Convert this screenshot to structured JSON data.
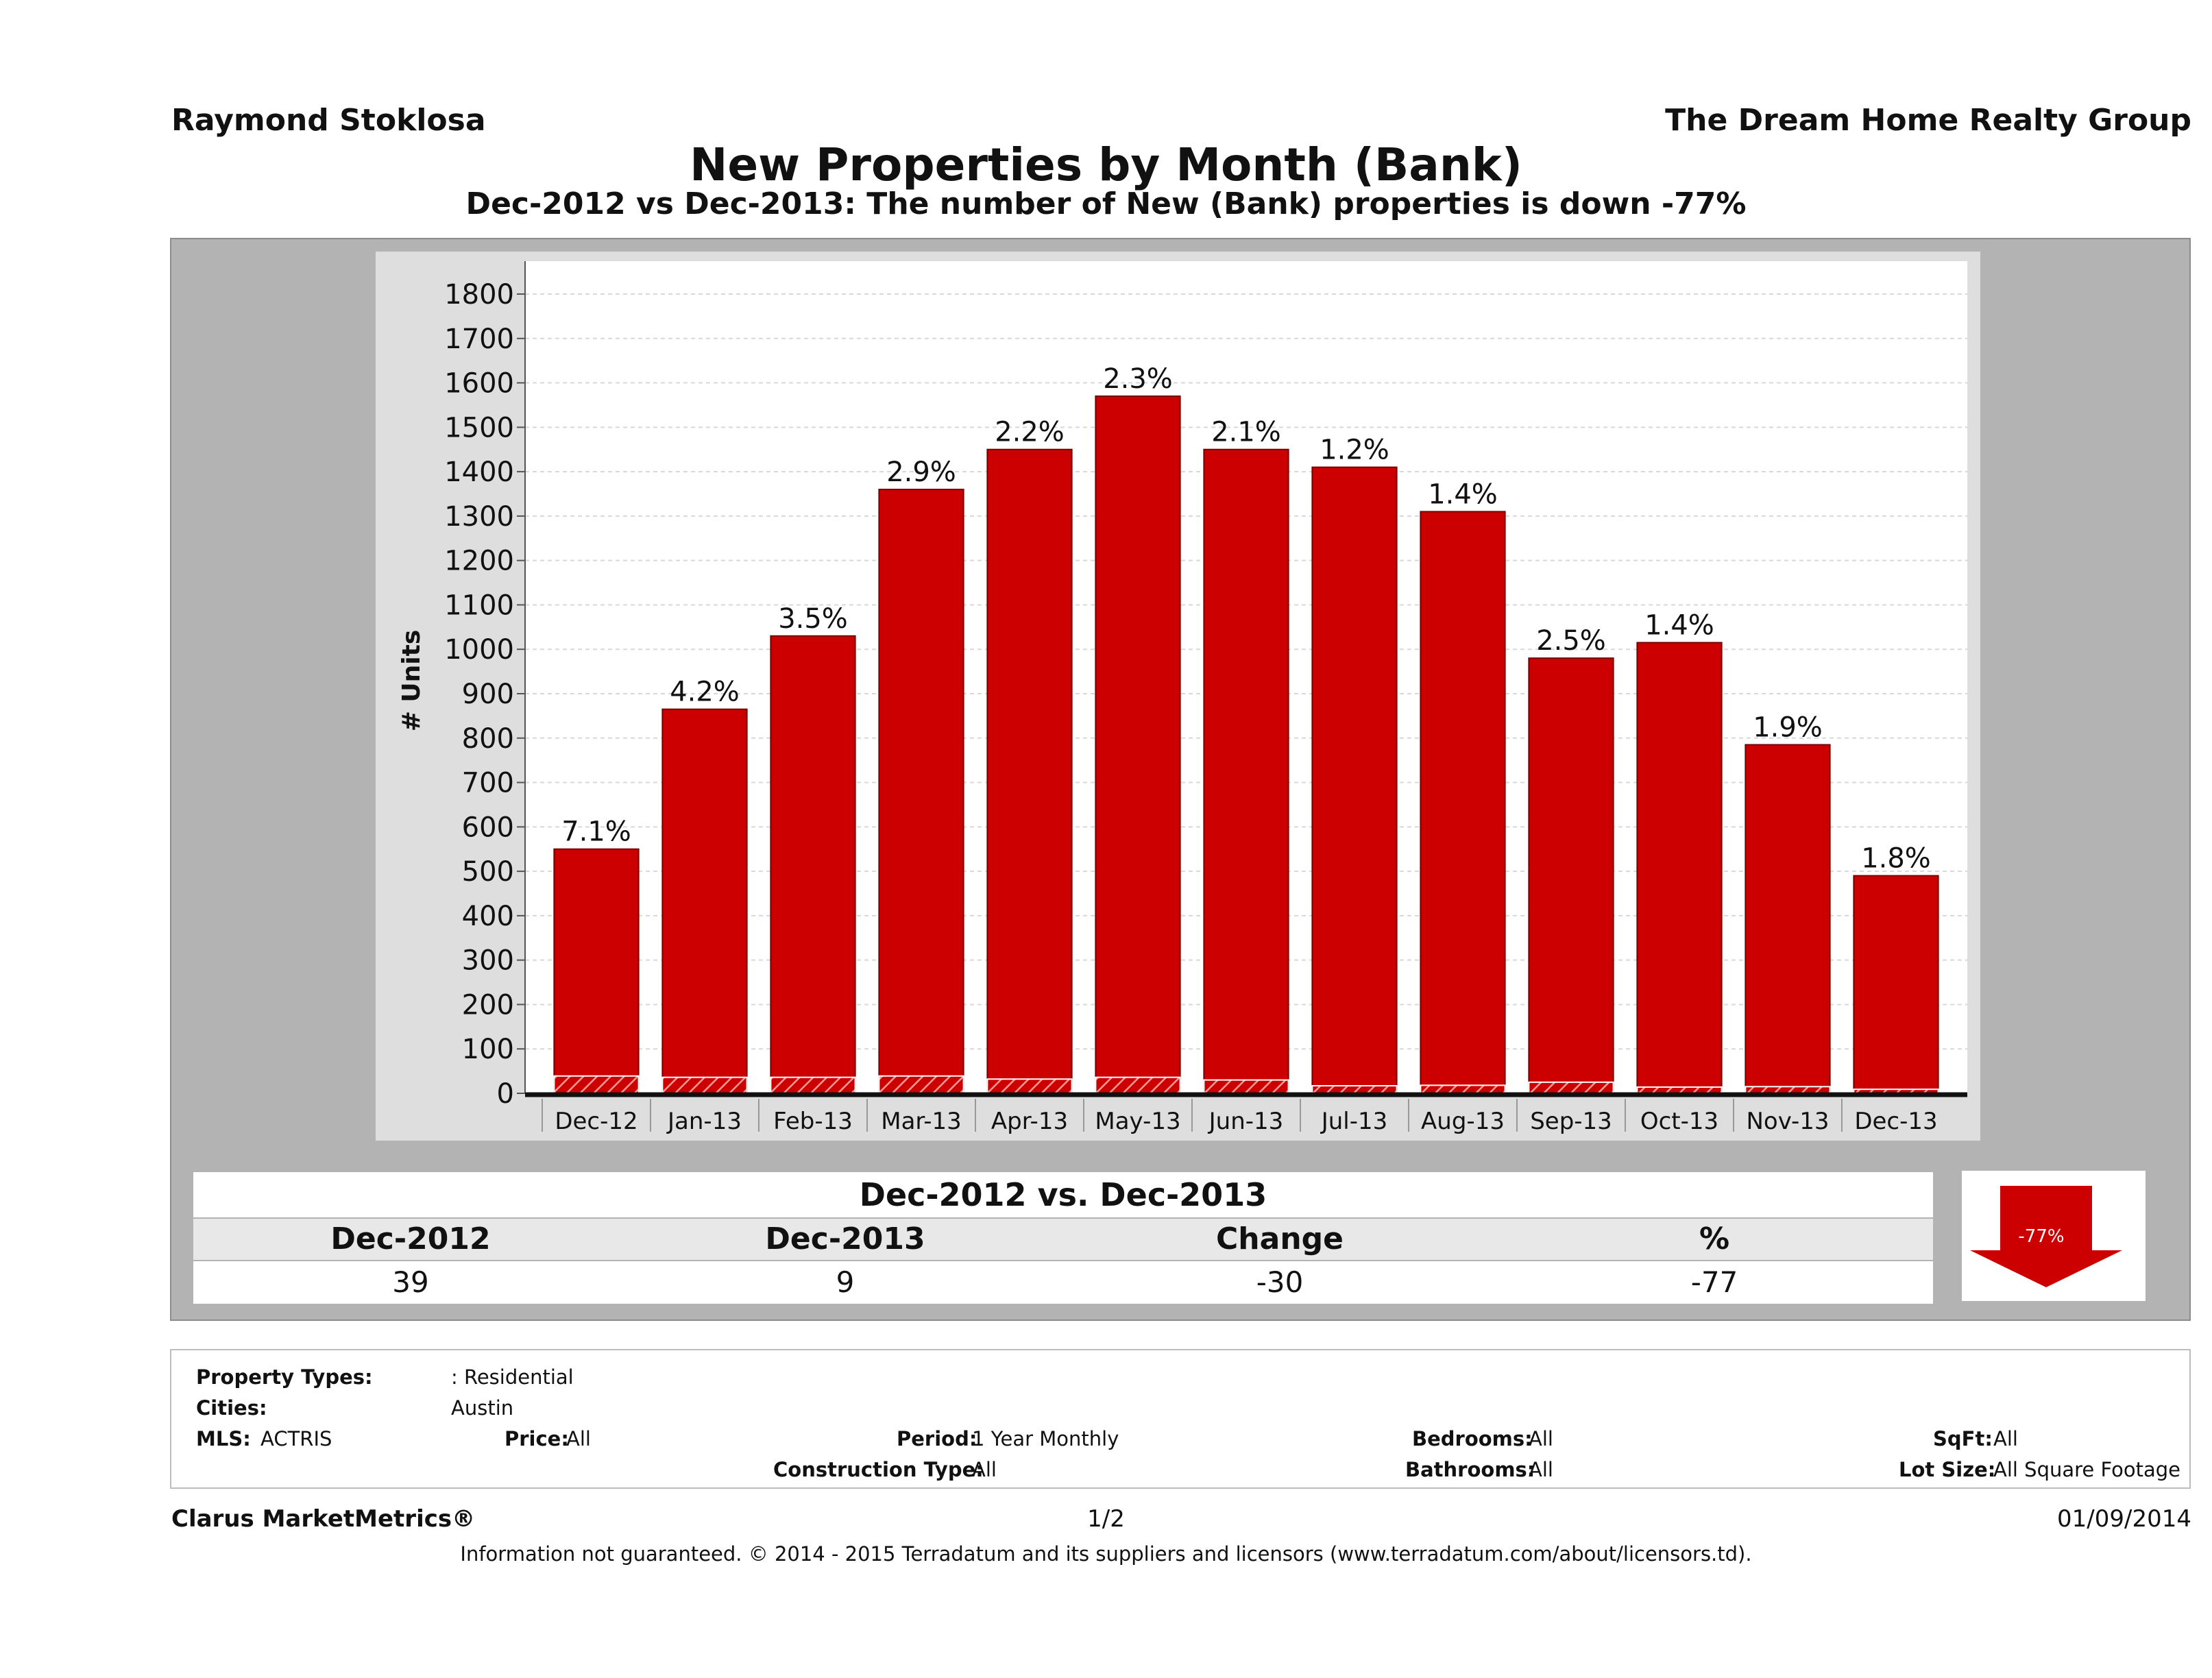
{
  "header": {
    "agent": "Raymond Stoklosa",
    "company": "The Dream Home Realty Group"
  },
  "chart_data": {
    "type": "bar",
    "title": "New Properties by Month (Bank)",
    "subtitle": "Dec-2012 vs Dec-2013: The number of New (Bank)  properties is down -77%",
    "ylabel": "# Units",
    "xlabel": "",
    "ylim": [
      0,
      1800
    ],
    "yticks": [
      0,
      100,
      200,
      300,
      400,
      500,
      600,
      700,
      800,
      900,
      1000,
      1100,
      1200,
      1300,
      1400,
      1500,
      1600,
      1700,
      1800
    ],
    "grid": true,
    "categories": [
      "Dec-12",
      "Jan-13",
      "Feb-13",
      "Mar-13",
      "Apr-13",
      "May-13",
      "Jun-13",
      "Jul-13",
      "Aug-13",
      "Sep-13",
      "Oct-13",
      "Nov-13",
      "Dec-13"
    ],
    "series": [
      {
        "values": [
          550,
          865,
          1030,
          1360,
          1450,
          1570,
          1450,
          1410,
          1310,
          980,
          1015,
          785,
          490
        ],
        "color": "#cc0000"
      },
      {
        "values": [
          39,
          36,
          36,
          39,
          32,
          36,
          30,
          17,
          18,
          25,
          14,
          15,
          9
        ],
        "color": "#cc0000",
        "pattern": "hatched"
      }
    ],
    "data_labels": [
      "7.1%",
      "4.2%",
      "3.5%",
      "2.9%",
      "2.2%",
      "2.3%",
      "2.1%",
      "1.2%",
      "1.4%",
      "2.5%",
      "1.4%",
      "1.9%",
      "1.8%"
    ]
  },
  "comparison": {
    "title": "Dec-2012 vs. Dec-2013",
    "headers": [
      "Dec-2012",
      "Dec-2013",
      "Change",
      "%"
    ],
    "values": [
      "39",
      "9",
      "-30",
      "-77"
    ],
    "arrow_label": "-77%",
    "arrow_color": "#cc0000"
  },
  "filters": {
    "property_types_label": "Property Types:",
    "property_types_value": ": Residential",
    "cities_label": "Cities:",
    "cities_value": "Austin",
    "mls_label": "MLS:",
    "mls_value": "ACTRIS",
    "price_label": "Price:",
    "price_value": "All",
    "period_label": "Period:",
    "period_value": "1 Year Monthly",
    "construction_label": "Construction Type:",
    "construction_value": "All",
    "bedrooms_label": "Bedrooms:",
    "bedrooms_value": "All",
    "bathrooms_label": "Bathrooms:",
    "bathrooms_value": "All",
    "sqft_label": "SqFt:",
    "sqft_value": "All",
    "lotsize_label": "Lot Size:",
    "lotsize_value": "All Square Footage"
  },
  "footer": {
    "brand": "Clarus MarketMetrics®",
    "page": "1/2",
    "date": "01/09/2014",
    "disclaimer": "Information not guaranteed. © 2014 - 2015 Terradatum and its suppliers and licensors (www.terradatum.com/about/licensors.td)."
  }
}
